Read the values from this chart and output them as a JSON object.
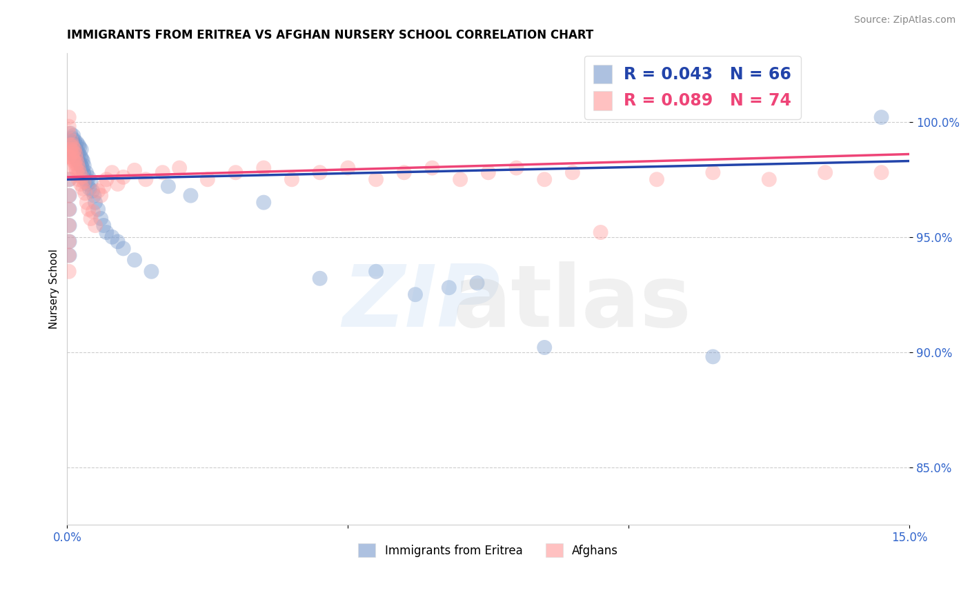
{
  "title": "IMMIGRANTS FROM ERITREA VS AFGHAN NURSERY SCHOOL CORRELATION CHART",
  "source": "Source: ZipAtlas.com",
  "ylabel": "Nursery School",
  "xlim": [
    0.0,
    15.0
  ],
  "ylim": [
    82.5,
    103.0
  ],
  "ytick_vals": [
    85.0,
    90.0,
    95.0,
    100.0
  ],
  "ytick_labels": [
    "85.0%",
    "90.0%",
    "95.0%",
    "100.0%"
  ],
  "blue_R": 0.043,
  "blue_N": 66,
  "pink_R": 0.089,
  "pink_N": 74,
  "blue_color": "#7799CC",
  "pink_color": "#FF9999",
  "blue_line_color": "#2244AA",
  "pink_line_color": "#EE4477",
  "legend_label_blue": "Immigrants from Eritrea",
  "legend_label_pink": "Afghans",
  "blue_x": [
    0.05,
    0.06,
    0.07,
    0.08,
    0.09,
    0.1,
    0.1,
    0.11,
    0.12,
    0.13,
    0.14,
    0.15,
    0.15,
    0.16,
    0.17,
    0.18,
    0.19,
    0.2,
    0.2,
    0.21,
    0.22,
    0.23,
    0.24,
    0.25,
    0.25,
    0.26,
    0.27,
    0.28,
    0.29,
    0.3,
    0.3,
    0.32,
    0.34,
    0.36,
    0.38,
    0.4,
    0.42,
    0.45,
    0.48,
    0.5,
    0.55,
    0.6,
    0.65,
    0.7,
    0.8,
    0.9,
    1.0,
    1.2,
    1.5,
    1.8,
    2.2,
    3.5,
    4.5,
    5.5,
    6.2,
    6.8,
    7.3,
    8.5,
    11.5,
    14.5,
    0.04,
    0.04,
    0.04,
    0.04,
    0.04,
    0.04
  ],
  "blue_y": [
    99.2,
    99.5,
    99.0,
    98.8,
    99.3,
    99.1,
    98.6,
    99.4,
    98.9,
    99.2,
    98.7,
    99.0,
    98.5,
    98.8,
    99.1,
    98.4,
    98.7,
    99.0,
    98.3,
    98.6,
    98.9,
    98.2,
    98.5,
    98.8,
    98.1,
    98.4,
    98.0,
    98.3,
    97.8,
    98.1,
    97.7,
    97.5,
    97.8,
    97.3,
    97.6,
    97.1,
    97.4,
    97.0,
    96.8,
    96.5,
    96.2,
    95.8,
    95.5,
    95.2,
    95.0,
    94.8,
    94.5,
    94.0,
    93.5,
    97.2,
    96.8,
    96.5,
    93.2,
    93.5,
    92.5,
    92.8,
    93.0,
    90.2,
    89.8,
    100.2,
    97.5,
    96.8,
    96.2,
    95.5,
    94.8,
    94.2
  ],
  "pink_x": [
    0.04,
    0.05,
    0.06,
    0.07,
    0.08,
    0.09,
    0.1,
    0.1,
    0.11,
    0.12,
    0.13,
    0.14,
    0.15,
    0.15,
    0.16,
    0.17,
    0.18,
    0.19,
    0.2,
    0.2,
    0.22,
    0.24,
    0.26,
    0.28,
    0.3,
    0.32,
    0.35,
    0.38,
    0.42,
    0.46,
    0.5,
    0.55,
    0.6,
    0.65,
    0.7,
    0.8,
    0.9,
    1.0,
    1.2,
    1.4,
    1.7,
    2.0,
    2.5,
    3.0,
    3.5,
    4.0,
    4.5,
    5.0,
    5.5,
    6.0,
    6.5,
    7.0,
    7.5,
    8.0,
    8.5,
    9.0,
    9.5,
    10.5,
    11.5,
    12.5,
    13.5,
    14.5,
    0.03,
    0.03,
    0.03,
    0.03,
    0.03,
    0.03,
    0.03,
    0.03,
    0.03,
    0.03,
    0.03,
    0.03
  ],
  "pink_y": [
    98.5,
    99.0,
    98.8,
    99.2,
    98.6,
    99.0,
    98.4,
    98.9,
    98.7,
    98.3,
    98.8,
    98.2,
    98.6,
    98.0,
    98.4,
    97.9,
    98.2,
    97.7,
    98.0,
    97.5,
    97.8,
    97.3,
    97.6,
    97.1,
    97.4,
    96.9,
    96.5,
    96.2,
    95.8,
    96.1,
    95.5,
    97.0,
    96.8,
    97.2,
    97.5,
    97.8,
    97.3,
    97.6,
    97.9,
    97.5,
    97.8,
    98.0,
    97.5,
    97.8,
    98.0,
    97.5,
    97.8,
    98.0,
    97.5,
    97.8,
    98.0,
    97.5,
    97.8,
    98.0,
    97.5,
    97.8,
    95.2,
    97.5,
    97.8,
    97.5,
    97.8,
    97.8,
    98.0,
    97.5,
    96.8,
    96.2,
    95.5,
    94.8,
    94.2,
    93.5,
    99.8,
    100.2,
    99.5,
    98.5
  ]
}
